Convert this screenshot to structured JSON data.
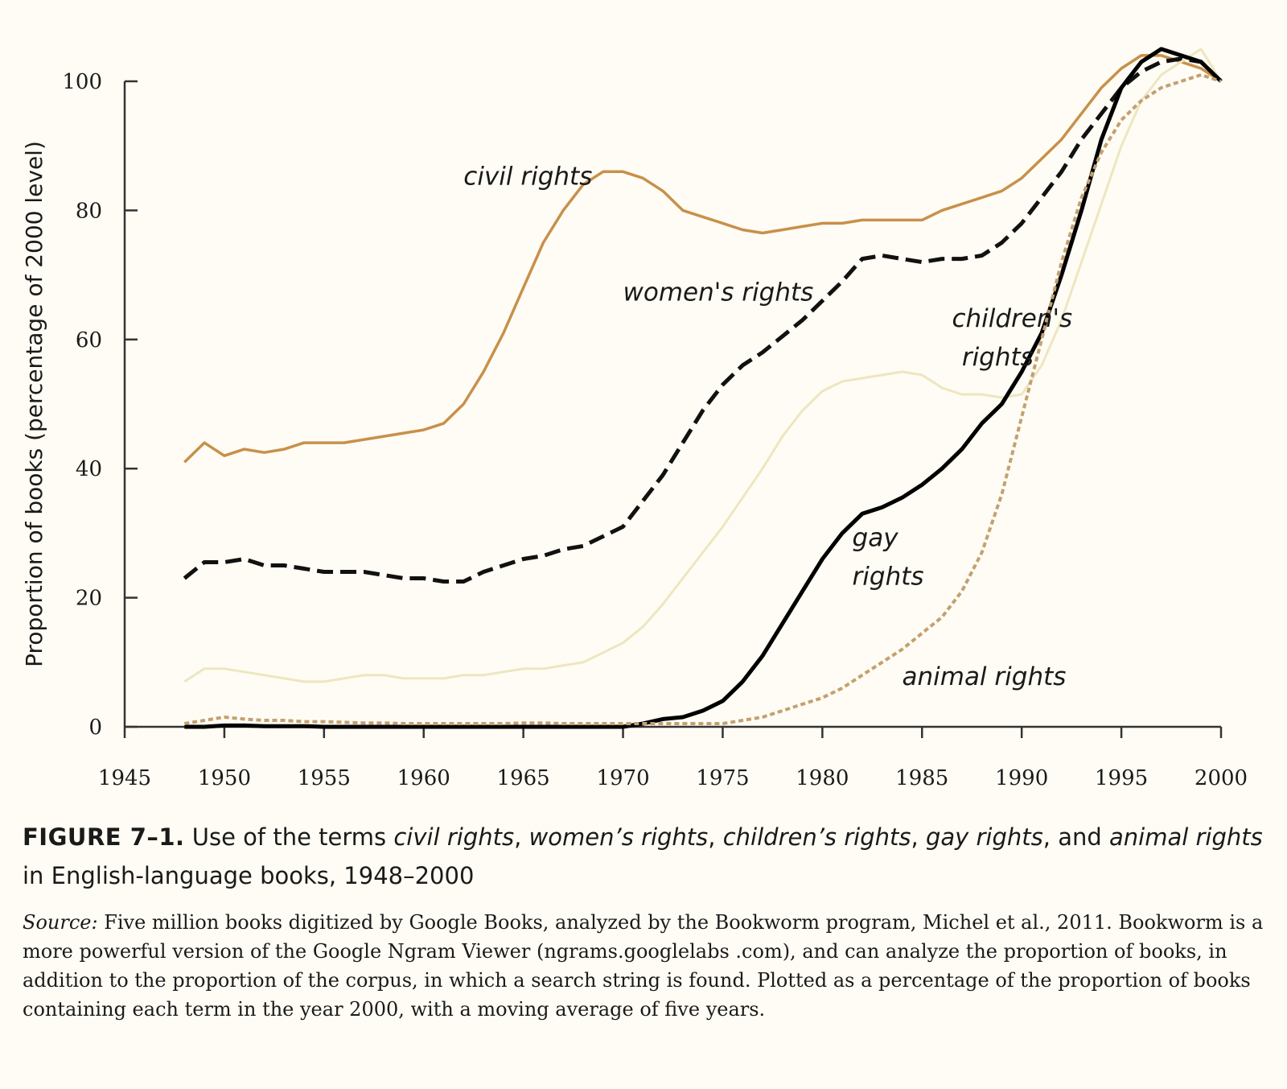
{
  "chart_data": {
    "type": "line",
    "ylabel": "Proportion of books (percentage of 2000 level)",
    "xlabel": "",
    "xlim": [
      1945,
      2000
    ],
    "ylim": [
      0,
      100
    ],
    "x_ticks": [
      1945,
      1950,
      1955,
      1960,
      1965,
      1970,
      1975,
      1980,
      1985,
      1990,
      1995,
      2000
    ],
    "y_ticks": [
      0,
      20,
      40,
      60,
      80,
      100
    ],
    "grid": false,
    "legend": "inline labels",
    "series": [
      {
        "name": "civil rights",
        "color": "#c8904a",
        "style": "solid",
        "x": [
          1948,
          1949,
          1950,
          1951,
          1952,
          1953,
          1954,
          1955,
          1956,
          1957,
          1958,
          1959,
          1960,
          1961,
          1962,
          1963,
          1964,
          1965,
          1966,
          1967,
          1968,
          1969,
          1970,
          1971,
          1972,
          1973,
          1974,
          1975,
          1976,
          1977,
          1978,
          1979,
          1980,
          1981,
          1982,
          1983,
          1984,
          1985,
          1986,
          1987,
          1988,
          1989,
          1990,
          1991,
          1992,
          1993,
          1994,
          1995,
          1996,
          1997,
          1998,
          1999,
          2000
        ],
        "values": [
          41,
          44,
          42,
          43,
          42.5,
          43,
          44,
          44,
          44,
          44.5,
          45,
          45.5,
          46,
          47,
          50,
          55,
          61,
          68,
          75,
          80,
          84,
          86,
          86,
          85,
          83,
          80,
          79,
          78,
          77,
          76.5,
          77,
          77.5,
          78,
          78,
          78.5,
          78.5,
          78.5,
          78.5,
          80,
          81,
          82,
          83,
          85,
          88,
          91,
          95,
          99,
          102,
          104,
          104,
          103,
          102,
          100
        ]
      },
      {
        "name": "women's rights",
        "color": "#111111",
        "style": "dashed",
        "x": [
          1948,
          1949,
          1950,
          1951,
          1952,
          1953,
          1954,
          1955,
          1956,
          1957,
          1958,
          1959,
          1960,
          1961,
          1962,
          1963,
          1964,
          1965,
          1966,
          1967,
          1968,
          1969,
          1970,
          1971,
          1972,
          1973,
          1974,
          1975,
          1976,
          1977,
          1978,
          1979,
          1980,
          1981,
          1982,
          1983,
          1984,
          1985,
          1986,
          1987,
          1988,
          1989,
          1990,
          1991,
          1992,
          1993,
          1994,
          1995,
          1996,
          1997,
          1998,
          1999,
          2000
        ],
        "values": [
          23,
          25.5,
          25.5,
          26,
          25,
          25,
          24.5,
          24,
          24,
          24,
          23.5,
          23,
          23,
          22.5,
          22.5,
          24,
          25,
          26,
          26.5,
          27.5,
          28,
          29.5,
          31,
          35,
          39,
          44,
          49,
          53,
          56,
          58,
          60.5,
          63,
          66,
          69,
          72.5,
          73,
          72.5,
          72,
          72.5,
          72.5,
          73,
          75,
          78,
          82,
          86,
          91,
          95,
          99,
          101.5,
          103,
          103.5,
          103,
          100
        ]
      },
      {
        "name": "children's rights",
        "color": "#eee6c0",
        "style": "solid",
        "x": [
          1948,
          1949,
          1950,
          1951,
          1952,
          1953,
          1954,
          1955,
          1956,
          1957,
          1958,
          1959,
          1960,
          1961,
          1962,
          1963,
          1964,
          1965,
          1966,
          1967,
          1968,
          1969,
          1970,
          1971,
          1972,
          1973,
          1974,
          1975,
          1976,
          1977,
          1978,
          1979,
          1980,
          1981,
          1982,
          1983,
          1984,
          1985,
          1986,
          1987,
          1988,
          1989,
          1990,
          1991,
          1992,
          1993,
          1994,
          1995,
          1996,
          1997,
          1998,
          1999,
          2000
        ],
        "values": [
          7,
          9,
          9,
          8.5,
          8,
          7.5,
          7,
          7,
          7.5,
          8,
          8,
          7.5,
          7.5,
          7.5,
          8,
          8,
          8.5,
          9,
          9,
          9.5,
          10,
          11.5,
          13,
          15.5,
          19,
          23,
          27,
          31,
          35.5,
          40,
          45,
          49,
          52,
          53.5,
          54,
          54.5,
          55,
          54.5,
          52.5,
          51.5,
          51.5,
          51,
          51.5,
          56,
          63,
          72,
          81,
          90,
          97,
          101,
          103,
          105,
          100
        ]
      },
      {
        "name": "gay rights",
        "color": "#000000",
        "style": "solid",
        "x": [
          1948,
          1949,
          1950,
          1951,
          1952,
          1953,
          1954,
          1955,
          1956,
          1957,
          1958,
          1959,
          1960,
          1961,
          1962,
          1963,
          1964,
          1965,
          1966,
          1967,
          1968,
          1969,
          1970,
          1971,
          1972,
          1973,
          1974,
          1975,
          1976,
          1977,
          1978,
          1979,
          1980,
          1981,
          1982,
          1983,
          1984,
          1985,
          1986,
          1987,
          1988,
          1989,
          1990,
          1991,
          1992,
          1993,
          1994,
          1995,
          1996,
          1997,
          1998,
          1999,
          2000
        ],
        "values": [
          0,
          0,
          0.2,
          0.2,
          0.1,
          0.1,
          0.1,
          0,
          0,
          0,
          0,
          0,
          0,
          0,
          0,
          0,
          0,
          0,
          0,
          0,
          0,
          0,
          0,
          0.5,
          1.2,
          1.5,
          2.5,
          4,
          7,
          11,
          16,
          21,
          26,
          30,
          33,
          34,
          35.5,
          37.5,
          40,
          43,
          47,
          50,
          55,
          61,
          70,
          80,
          91,
          99,
          103,
          105,
          104,
          103,
          100
        ]
      },
      {
        "name": "animal rights",
        "color": "#c4a070",
        "style": "dotted",
        "x": [
          1948,
          1949,
          1950,
          1951,
          1952,
          1953,
          1954,
          1955,
          1956,
          1957,
          1958,
          1959,
          1960,
          1961,
          1962,
          1963,
          1964,
          1965,
          1966,
          1967,
          1968,
          1969,
          1970,
          1971,
          1972,
          1973,
          1974,
          1975,
          1976,
          1977,
          1978,
          1979,
          1980,
          1981,
          1982,
          1983,
          1984,
          1985,
          1986,
          1987,
          1988,
          1989,
          1990,
          1991,
          1992,
          1993,
          1994,
          1995,
          1996,
          1997,
          1998,
          1999,
          2000
        ],
        "values": [
          0.5,
          1,
          1.5,
          1.2,
          1,
          1,
          0.8,
          0.8,
          0.7,
          0.6,
          0.6,
          0.5,
          0.5,
          0.5,
          0.5,
          0.5,
          0.5,
          0.6,
          0.6,
          0.5,
          0.5,
          0.5,
          0.5,
          0.5,
          0.5,
          0.5,
          0.5,
          0.5,
          1,
          1.5,
          2.5,
          3.5,
          4.5,
          6,
          8,
          10,
          12,
          14.5,
          17,
          21,
          27,
          36,
          48,
          60,
          72,
          82,
          89,
          94,
          97,
          99,
          100,
          101,
          100
        ]
      }
    ],
    "annotations": [
      {
        "text": "civil rights",
        "x": 1962,
        "y": 84
      },
      {
        "text": "women's rights",
        "x": 1970,
        "y": 66
      },
      {
        "text": "children's",
        "x": 1986.5,
        "y": 62
      },
      {
        "text": "rights",
        "x": 1987,
        "y": 56
      },
      {
        "text": "gay",
        "x": 1981.5,
        "y": 28
      },
      {
        "text": "rights",
        "x": 1981.5,
        "y": 22
      },
      {
        "text": "animal rights",
        "x": 1984,
        "y": 6.5
      }
    ]
  },
  "caption": {
    "figure_number": "FIGURE 7–1.",
    "t1": " Use of the terms ",
    "civil": "civil rights",
    "c1": ", ",
    "womens": "women’s rights",
    "c2": ", ",
    "childrens": "children’s rights",
    "c3": ", ",
    "gay": "gay rights",
    "t2": ", and ",
    "animal": "animal rights",
    "t3": " in English-language books, 1948–2000"
  },
  "source": {
    "label": "Source:",
    "text": " Five million books digitized by Google Books, analyzed by the Bookworm program, Michel et al., 2011. Bookworm is a more powerful version of the Google Ngram Viewer (ngrams.googlelabs .com), and can analyze the proportion of books, in addition to the proportion of the corpus, in which a search string is found. Plotted as a percentage of the proportion of books containing each term in the year 2000, with a moving average of five years."
  }
}
